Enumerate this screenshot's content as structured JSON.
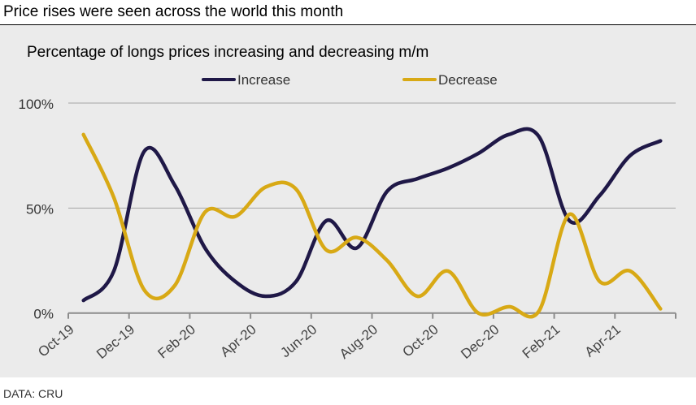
{
  "headline": "Price rises were seen across the world this month",
  "source": "DATA: CRU",
  "chart_data": {
    "type": "line",
    "title": "Percentage of longs prices increasing and decreasing m/m",
    "xlabel": "",
    "ylabel": "",
    "ylim": [
      0,
      100
    ],
    "y_ticks": [
      "0%",
      "50%",
      "100%"
    ],
    "y_tick_values": [
      0,
      50,
      100
    ],
    "x": [
      "Oct-19",
      "Nov-19",
      "Dec-19",
      "Jan-20",
      "Feb-20",
      "Mar-20",
      "Apr-20",
      "May-20",
      "Jun-20",
      "Jul-20",
      "Aug-20",
      "Sep-20",
      "Oct-20",
      "Nov-20",
      "Dec-20",
      "Jan-21",
      "Feb-21",
      "Mar-21",
      "Apr-21",
      "May-21"
    ],
    "x_tick_labels": [
      "Oct-19",
      "Dec-19",
      "Feb-20",
      "Apr-20",
      "Jun-20",
      "Aug-20",
      "Oct-20",
      "Dec-20",
      "Feb-21",
      "Apr-21"
    ],
    "legend_position": "top-center",
    "grid": true,
    "series": [
      {
        "name": "Increase",
        "color": "#1f1847",
        "values": [
          6,
          20,
          77,
          61,
          31,
          15,
          8,
          15,
          44,
          31,
          58,
          64,
          69,
          76,
          85,
          84,
          44,
          56,
          75,
          82
        ]
      },
      {
        "name": "Decrease",
        "color": "#d8a915",
        "values": [
          85,
          55,
          11,
          13,
          48,
          46,
          60,
          59,
          30,
          36,
          25,
          8,
          20,
          0,
          3,
          1,
          47,
          15,
          20,
          2
        ]
      }
    ]
  }
}
